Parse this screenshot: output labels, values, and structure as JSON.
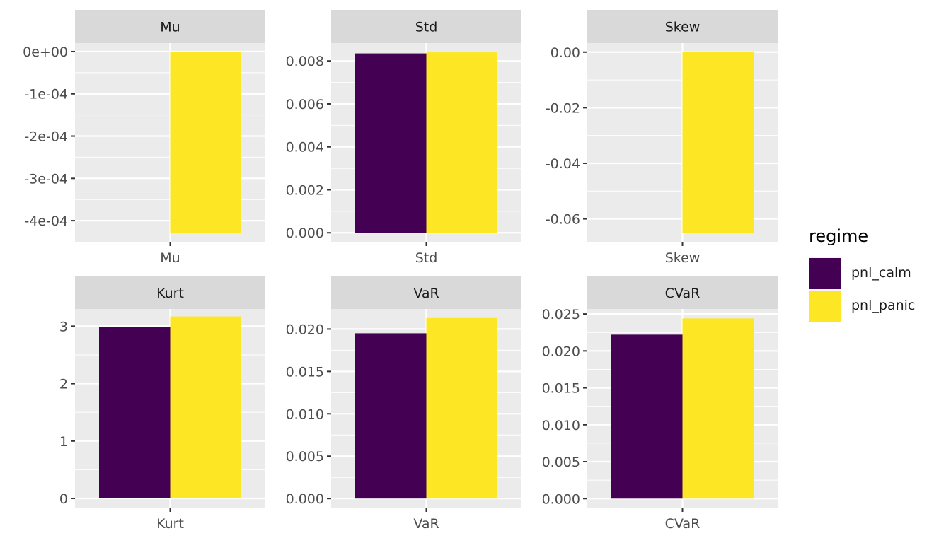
{
  "chart_data": {
    "type": "bar",
    "facet_layout": "2x3 grid",
    "legend": {
      "title": "regime",
      "position": "right",
      "entries": [
        {
          "name": "pnl_calm",
          "color": "#440154"
        },
        {
          "name": "pnl_panic",
          "color": "#FDE725"
        }
      ]
    },
    "panels": [
      {
        "strip": "Mu",
        "x_tick": "Mu",
        "ylim": [
          -0.00045,
          2e-05
        ],
        "y_ticks": [
          0,
          -0.0001,
          -0.0002,
          -0.0003,
          -0.0004
        ],
        "y_tick_labels": [
          "0e+00",
          "-1e-04",
          "-2e-04",
          "-3e-04",
          "-4e-04"
        ],
        "values": {
          "pnl_calm": 0.0,
          "pnl_panic": -0.00043
        }
      },
      {
        "strip": "Std",
        "x_tick": "Std",
        "ylim": [
          -0.00042,
          0.00883
        ],
        "y_ticks": [
          0,
          0.002,
          0.004,
          0.006,
          0.008
        ],
        "y_tick_labels": [
          "0.000",
          "0.002",
          "0.004",
          "0.006",
          "0.008"
        ],
        "values": {
          "pnl_calm": 0.00835,
          "pnl_panic": 0.0084
        }
      },
      {
        "strip": "Skew",
        "x_tick": "Skew",
        "ylim": [
          -0.06825,
          0.00325
        ],
        "y_ticks": [
          0,
          -0.02,
          -0.04,
          -0.06
        ],
        "y_tick_labels": [
          "0.00",
          "-0.02",
          "-0.04",
          "-0.06"
        ],
        "values": {
          "pnl_calm": 0.0,
          "pnl_panic": -0.065
        }
      },
      {
        "strip": "Kurt",
        "x_tick": "Kurt",
        "ylim": [
          -0.16,
          3.3
        ],
        "y_ticks": [
          0,
          1,
          2,
          3
        ],
        "y_tick_labels": [
          "0",
          "1",
          "2",
          "3"
        ],
        "values": {
          "pnl_calm": 2.98,
          "pnl_panic": 3.17
        }
      },
      {
        "strip": "VaR",
        "x_tick": "VaR",
        "ylim": [
          -0.00107,
          0.02237
        ],
        "y_ticks": [
          0,
          0.005,
          0.01,
          0.015,
          0.02
        ],
        "y_tick_labels": [
          "0.000",
          "0.005",
          "0.010",
          "0.015",
          "0.020"
        ],
        "values": {
          "pnl_calm": 0.0195,
          "pnl_panic": 0.0213
        }
      },
      {
        "strip": "CVaR",
        "x_tick": "CVaR",
        "ylim": [
          -0.00122,
          0.02568
        ],
        "y_ticks": [
          0,
          0.005,
          0.01,
          0.015,
          0.02,
          0.025
        ],
        "y_tick_labels": [
          "0.000",
          "0.005",
          "0.010",
          "0.015",
          "0.020",
          "0.025"
        ],
        "values": {
          "pnl_calm": 0.0222,
          "pnl_panic": 0.0244
        }
      }
    ],
    "grid": true,
    "panel_background": "#EBEBEB",
    "strip_background": "#D9D9D9"
  }
}
